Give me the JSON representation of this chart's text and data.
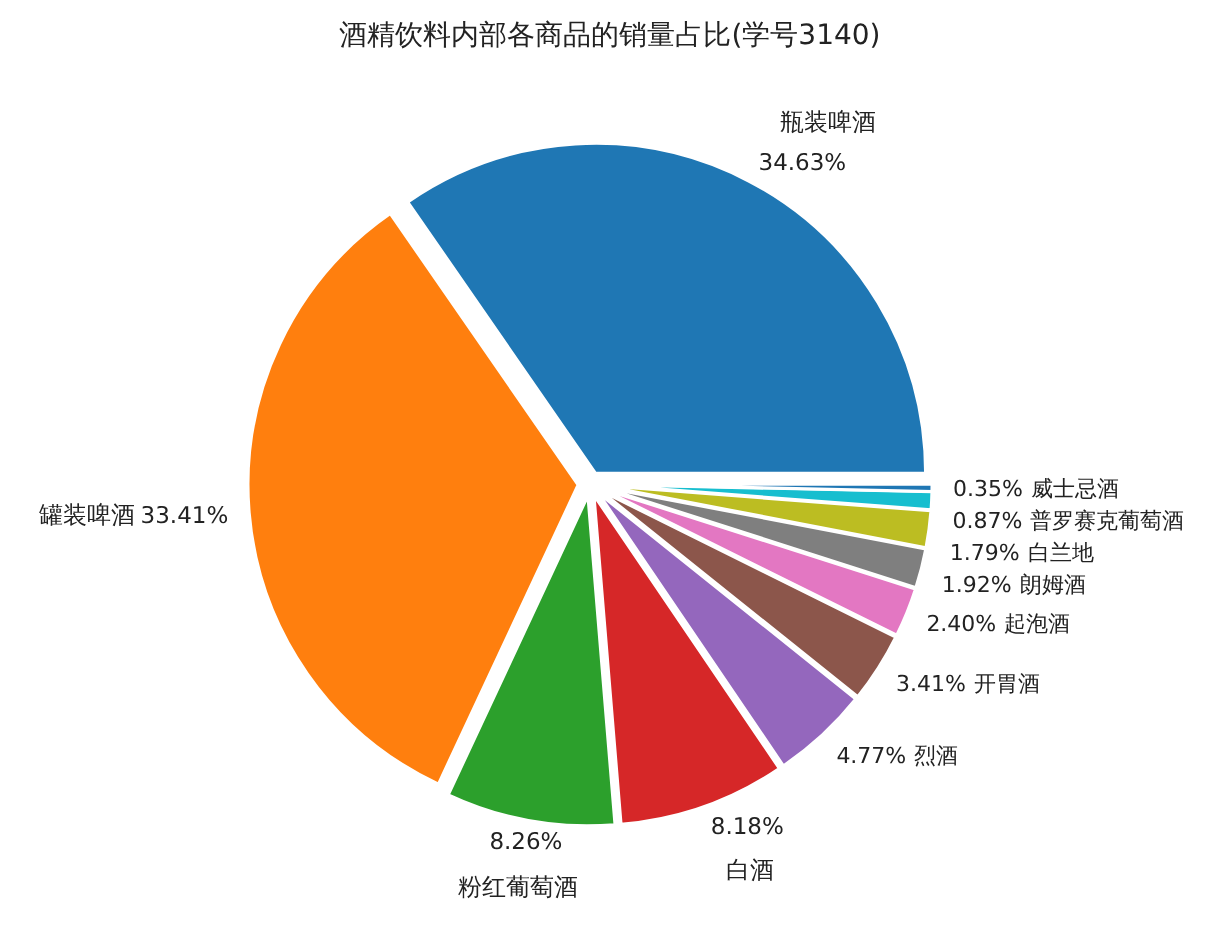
{
  "chart_data": {
    "type": "pie",
    "title": "酒精饮料内部各商品的销量占比(学号3140)",
    "categories": [
      "瓶装啤酒",
      "罐装啤酒",
      "粉红葡萄酒",
      "白酒",
      "烈酒",
      "开胃酒",
      "起泡酒",
      "朗姆酒",
      "白兰地",
      "普罗赛克葡萄酒",
      "威士忌酒"
    ],
    "values": [
      34.63,
      33.41,
      8.26,
      8.18,
      4.77,
      3.41,
      2.4,
      1.92,
      1.79,
      0.87,
      0.35
    ],
    "colors": [
      "#1f77b4",
      "#ff7f0e",
      "#2ca02c",
      "#d62728",
      "#9467bd",
      "#8c564b",
      "#e377c2",
      "#7f7f7f",
      "#bcbd22",
      "#17becf",
      "#1f77b4"
    ],
    "value_labels": [
      "34.63%",
      "33.41%",
      "8.26%",
      "8.18%",
      "4.77%",
      "3.41%",
      "2.40%",
      "1.92%",
      "1.79%",
      "0.87%",
      "0.35%"
    ]
  }
}
